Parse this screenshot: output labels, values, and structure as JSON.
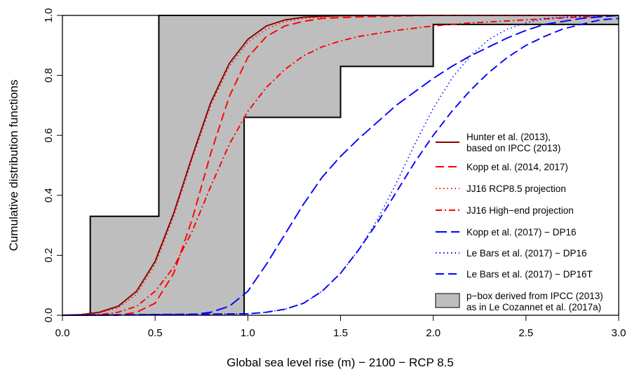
{
  "chart_data": {
    "type": "line",
    "title": "",
    "xlabel": "Global sea level rise (m) − 2100 − RCP 8.5",
    "ylabel": "Cumulative distribution functions",
    "xlim": [
      0,
      3
    ],
    "ylim": [
      0,
      1
    ],
    "x_ticks": [
      {
        "value": 0.0,
        "label": "0.0"
      },
      {
        "value": 0.5,
        "label": "0.5"
      },
      {
        "value": 1.0,
        "label": "1.0"
      },
      {
        "value": 1.5,
        "label": "1.5"
      },
      {
        "value": 2.0,
        "label": "2.0"
      },
      {
        "value": 2.5,
        "label": "2.5"
      },
      {
        "value": 3.0,
        "label": "3.0"
      }
    ],
    "y_ticks": [
      {
        "value": 0.0,
        "label": "0.0"
      },
      {
        "value": 0.2,
        "label": "0.2"
      },
      {
        "value": 0.4,
        "label": "0.4"
      },
      {
        "value": 0.6,
        "label": "0.6"
      },
      {
        "value": 0.8,
        "label": "0.8"
      },
      {
        "value": 1.0,
        "label": "1.0"
      }
    ],
    "grid": false,
    "legend_position": "right",
    "pbox": {
      "name": "p−box derived from IPCC (2013) as in Le Cozannet et al. (2017a)",
      "legend_lines": [
        "p−box derived from IPCC (2013)",
        "as in Le Cozannet et al. (2017a)"
      ],
      "fill": "#bebebe",
      "upper": [
        [
          0.0,
          0.0
        ],
        [
          0.15,
          0.0
        ],
        [
          0.15,
          0.33
        ],
        [
          0.52,
          0.33
        ],
        [
          0.52,
          1.0
        ],
        [
          3.0,
          1.0
        ]
      ],
      "lower": [
        [
          0.98,
          0.0
        ],
        [
          0.98,
          0.66
        ],
        [
          1.5,
          0.66
        ],
        [
          1.5,
          0.83
        ],
        [
          2.0,
          0.83
        ],
        [
          2.0,
          0.97
        ],
        [
          3.0,
          0.97
        ]
      ]
    },
    "series": [
      {
        "name": "Hunter et al. (2013), based on IPCC (2013)",
        "legend_lines": [
          "Hunter et al. (2013),",
          "based on IPCC (2013)"
        ],
        "color": "#8b0000",
        "dash": "solid",
        "x": [
          0,
          0.1,
          0.2,
          0.3,
          0.4,
          0.5,
          0.6,
          0.7,
          0.8,
          0.9,
          1.0,
          1.1,
          1.2,
          1.3,
          1.4,
          1.5,
          1.7,
          2.0,
          2.5,
          3.0
        ],
        "y": [
          0.0,
          0.002,
          0.01,
          0.03,
          0.08,
          0.18,
          0.34,
          0.53,
          0.71,
          0.84,
          0.92,
          0.965,
          0.985,
          0.994,
          0.997,
          0.999,
          1.0,
          1.0,
          1.0,
          1.0
        ]
      },
      {
        "name": "Kopp et al. (2014, 2017)",
        "legend_lines": [
          "Kopp et al. (2014, 2017)"
        ],
        "color": "#ff0000",
        "dash": "dashed",
        "x": [
          0,
          0.3,
          0.4,
          0.5,
          0.6,
          0.7,
          0.8,
          0.9,
          1.0,
          1.1,
          1.2,
          1.3,
          1.4,
          1.6,
          1.8,
          2.0,
          2.5,
          3.0
        ],
        "y": [
          0.0,
          0.0,
          0.01,
          0.04,
          0.14,
          0.32,
          0.54,
          0.73,
          0.86,
          0.93,
          0.965,
          0.98,
          0.99,
          0.995,
          0.998,
          1.0,
          1.0,
          1.0
        ]
      },
      {
        "name": "JJ16 RCP8.5 projection",
        "legend_lines": [
          "JJ16 RCP8.5 projection"
        ],
        "color": "#ff0000",
        "dash": "dotted",
        "x": [
          0,
          0.1,
          0.2,
          0.3,
          0.4,
          0.5,
          0.6,
          0.7,
          0.8,
          0.9,
          1.0,
          1.1,
          1.2,
          1.3,
          1.5,
          2.0,
          2.5,
          3.0
        ],
        "y": [
          0.0,
          0.001,
          0.008,
          0.025,
          0.07,
          0.17,
          0.33,
          0.52,
          0.7,
          0.83,
          0.91,
          0.955,
          0.98,
          0.99,
          0.998,
          1.0,
          1.0,
          1.0
        ]
      },
      {
        "name": "JJ16 High−end projection",
        "legend_lines": [
          "JJ16 High−end projection"
        ],
        "color": "#ff0000",
        "dash": "dotdash",
        "x": [
          0,
          0.2,
          0.3,
          0.4,
          0.5,
          0.6,
          0.7,
          0.8,
          0.9,
          1.0,
          1.1,
          1.2,
          1.3,
          1.4,
          1.5,
          1.6,
          1.8,
          2.0,
          2.2,
          2.5,
          2.8,
          3.0
        ],
        "y": [
          0.0,
          0.002,
          0.01,
          0.03,
          0.08,
          0.16,
          0.28,
          0.43,
          0.57,
          0.68,
          0.76,
          0.82,
          0.865,
          0.895,
          0.915,
          0.93,
          0.95,
          0.965,
          0.975,
          0.985,
          0.995,
          1.0
        ]
      },
      {
        "name": "Kopp et al. (2017) − DP16",
        "legend_lines": [
          "Kopp et al. (2017) − DP16"
        ],
        "color": "#0000ff",
        "dash": "longdash",
        "x": [
          0,
          0.7,
          0.8,
          0.9,
          1.0,
          1.1,
          1.2,
          1.3,
          1.4,
          1.5,
          1.6,
          1.7,
          1.8,
          1.9,
          2.0,
          2.1,
          2.2,
          2.3,
          2.4,
          2.5,
          2.6,
          2.7,
          2.8,
          2.9,
          3.0
        ],
        "y": [
          0.0,
          0.002,
          0.01,
          0.03,
          0.08,
          0.17,
          0.27,
          0.37,
          0.46,
          0.53,
          0.59,
          0.645,
          0.7,
          0.745,
          0.79,
          0.83,
          0.865,
          0.895,
          0.925,
          0.95,
          0.97,
          0.98,
          0.99,
          0.995,
          1.0
        ]
      },
      {
        "name": "Le Bars et al. (2017) − DP16",
        "legend_lines": [
          "Le Bars et al. (2017) − DP16"
        ],
        "color": "#0000ff",
        "dash": "dotted",
        "x": [
          0,
          1.0,
          1.1,
          1.2,
          1.3,
          1.4,
          1.5,
          1.6,
          1.7,
          1.8,
          1.9,
          2.0,
          2.1,
          2.2,
          2.3,
          2.4,
          2.5,
          2.6,
          2.8,
          3.0
        ],
        "y": [
          0.0,
          0.005,
          0.01,
          0.02,
          0.04,
          0.08,
          0.14,
          0.22,
          0.32,
          0.44,
          0.57,
          0.69,
          0.79,
          0.865,
          0.92,
          0.955,
          0.975,
          0.99,
          0.998,
          1.0
        ]
      },
      {
        "name": "Le Bars et al. (2017) − DP16T",
        "legend_lines": [
          "Le Bars et al. (2017) − DP16T"
        ],
        "color": "#0000ff",
        "dash": "dashed",
        "x": [
          0,
          1.0,
          1.1,
          1.2,
          1.3,
          1.4,
          1.5,
          1.6,
          1.7,
          1.8,
          1.9,
          2.0,
          2.1,
          2.2,
          2.3,
          2.4,
          2.5,
          2.6,
          2.7,
          2.8,
          2.9,
          3.0
        ],
        "y": [
          0.0,
          0.005,
          0.01,
          0.02,
          0.04,
          0.08,
          0.14,
          0.22,
          0.31,
          0.41,
          0.51,
          0.6,
          0.68,
          0.75,
          0.81,
          0.86,
          0.9,
          0.93,
          0.955,
          0.97,
          0.985,
          0.99
        ]
      }
    ]
  }
}
